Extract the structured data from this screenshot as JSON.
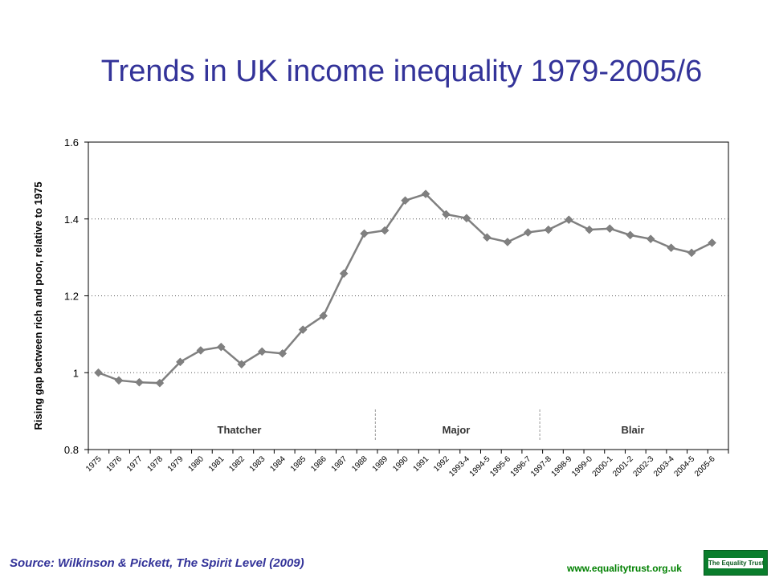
{
  "title": "Trends in UK income inequality 1979-2005/6",
  "source": "Source: Wilkinson & Pickett, The Spirit Level (2009)",
  "url": "www.equalitytrust.org.uk",
  "logo_text": "The Equality Trust",
  "colors": {
    "title": "#333399",
    "line": "#808080",
    "url": "#008000",
    "logo": "#0a7d2c"
  },
  "chart_data": {
    "type": "line",
    "ylabel": "Rising gap between rich and poor, relative to 1975",
    "xlabel": "",
    "ylim": [
      0.8,
      1.6
    ],
    "yticks": [
      0.8,
      1,
      1.2,
      1.4,
      1.6
    ],
    "ytick_labels": [
      "0.8",
      "1",
      "1.2",
      "1.4",
      "1.6"
    ],
    "grid": "horizontal dotted at 1, 1.2, 1.4",
    "categories": [
      "1975",
      "1976",
      "1977",
      "1978",
      "1979",
      "1980",
      "1981",
      "1982",
      "1983",
      "1984",
      "1985",
      "1986",
      "1987",
      "1988",
      "1989",
      "1990",
      "1991",
      "1992",
      "1993-4",
      "1994-5",
      "1995-6",
      "1996-7",
      "1997-8",
      "1998-9",
      "1999-0",
      "2000-1",
      "2001-2",
      "2002-3",
      "2003-4",
      "2004-5",
      "2005-6"
    ],
    "values": [
      1.0,
      0.98,
      0.975,
      0.973,
      1.028,
      1.058,
      1.067,
      1.022,
      1.055,
      1.05,
      1.112,
      1.148,
      1.258,
      1.362,
      1.37,
      1.448,
      1.465,
      1.412,
      1.402,
      1.352,
      1.34,
      1.365,
      1.372,
      1.398,
      1.372,
      1.375,
      1.358,
      1.348,
      1.325,
      1.312,
      1.338
    ],
    "eras": [
      {
        "label": "Thatcher"
      },
      {
        "label": "Major"
      },
      {
        "label": "Blair"
      }
    ]
  }
}
